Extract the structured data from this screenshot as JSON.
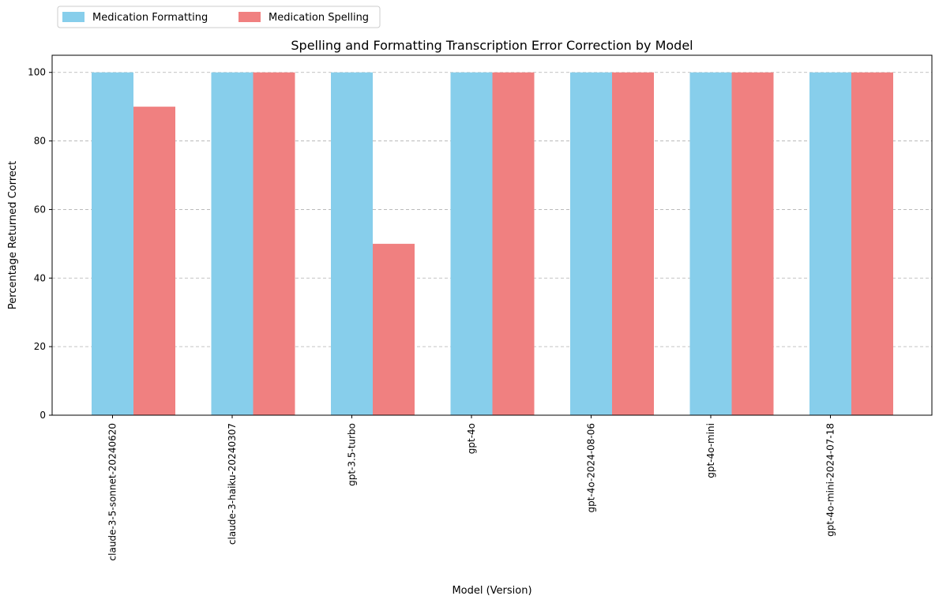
{
  "chart_data": {
    "type": "bar",
    "title": "Spelling and Formatting Transcription Error Correction by Model",
    "xlabel": "Model (Version)",
    "ylabel": "Percentage Returned Correct",
    "categories": [
      "claude-3-5-sonnet-20240620",
      "claude-3-haiku-20240307",
      "gpt-3.5-turbo",
      "gpt-4o",
      "gpt-4o-2024-08-06",
      "gpt-4o-mini",
      "gpt-4o-mini-2024-07-18"
    ],
    "series": [
      {
        "name": "Medication Formatting",
        "color": "#87ceeb",
        "values": [
          100,
          100,
          100,
          100,
          100,
          100,
          100
        ]
      },
      {
        "name": "Medication Spelling",
        "color": "#f08080",
        "values": [
          90,
          100,
          50,
          100,
          100,
          100,
          100
        ]
      }
    ],
    "ylim": [
      0,
      105
    ],
    "yticks": [
      0,
      20,
      40,
      60,
      80,
      100
    ],
    "grid": "y-dashed",
    "legend_position": "top-left, outside plot"
  }
}
